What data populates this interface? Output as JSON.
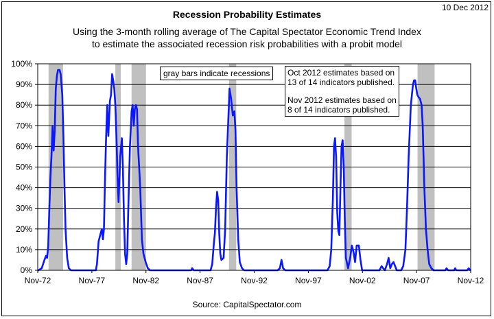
{
  "header": {
    "date": "10 Dec 2012",
    "title": "Recession Probability Estimates",
    "subtitle_line1": "Using the 3-month rolling average of The Capital Spectator Economic Trend Index",
    "subtitle_line2": "to estimate the associated recession risk probabilities with a probit model"
  },
  "annotations": {
    "recession_note": "gray bars indicate recessions",
    "estimate_note_1a": "Oct 2012 estimates based on",
    "estimate_note_1b": "13 of 14 indicators published.",
    "estimate_note_2a": "Nov 2012 estimates based on",
    "estimate_note_2b": "8 of 14 indicators published."
  },
  "footer": {
    "source": "Source: CapitalSpectator.com"
  },
  "colors": {
    "line": "#0a17ff",
    "recession_bar": "#c0c0c0",
    "grid": "#000000"
  },
  "chart_data": {
    "type": "line",
    "title": "Recession Probability Estimates",
    "xlabel": "",
    "ylabel": "",
    "x_ticks": [
      "Nov-72",
      "Nov-77",
      "Nov-82",
      "Nov-87",
      "Nov-92",
      "Nov-97",
      "Nov-02",
      "Nov-07",
      "Nov-12"
    ],
    "x_range": [
      1972.83,
      2012.83
    ],
    "y_ticks": [
      "0%",
      "10%",
      "20%",
      "30%",
      "40%",
      "50%",
      "60%",
      "70%",
      "80%",
      "90%",
      "100%"
    ],
    "ylim": [
      0,
      100
    ],
    "grid": "horizontal",
    "recessions": [
      {
        "start": 1973.83,
        "end": 1975.17
      },
      {
        "start": 1980.0,
        "end": 1980.5
      },
      {
        "start": 1981.5,
        "end": 1982.83
      },
      {
        "start": 1990.5,
        "end": 1991.17
      },
      {
        "start": 2001.17,
        "end": 2001.83
      },
      {
        "start": 2007.92,
        "end": 2009.5
      }
    ],
    "series": [
      {
        "values": [
          [
            1972.9,
            0
          ],
          [
            1973.2,
            1
          ],
          [
            1973.45,
            5
          ],
          [
            1973.6,
            7
          ],
          [
            1973.7,
            6
          ],
          [
            1973.8,
            12
          ],
          [
            1973.9,
            30
          ],
          [
            1974.0,
            45
          ],
          [
            1974.1,
            55
          ],
          [
            1974.2,
            70
          ],
          [
            1974.3,
            58
          ],
          [
            1974.4,
            68
          ],
          [
            1974.5,
            88
          ],
          [
            1974.6,
            94
          ],
          [
            1974.7,
            97
          ],
          [
            1974.85,
            97
          ],
          [
            1974.95,
            95
          ],
          [
            1975.1,
            85
          ],
          [
            1975.2,
            65
          ],
          [
            1975.3,
            40
          ],
          [
            1975.4,
            20
          ],
          [
            1975.55,
            6
          ],
          [
            1975.7,
            1
          ],
          [
            1975.9,
            0
          ],
          [
            1978.0,
            0
          ],
          [
            1978.2,
            0
          ],
          [
            1978.3,
            3
          ],
          [
            1978.45,
            14
          ],
          [
            1978.6,
            17
          ],
          [
            1978.75,
            20
          ],
          [
            1978.85,
            15
          ],
          [
            1978.95,
            20
          ],
          [
            1979.05,
            45
          ],
          [
            1979.15,
            65
          ],
          [
            1979.25,
            80
          ],
          [
            1979.35,
            65
          ],
          [
            1979.5,
            82
          ],
          [
            1979.6,
            85
          ],
          [
            1979.7,
            95
          ],
          [
            1979.8,
            92
          ],
          [
            1979.9,
            88
          ],
          [
            1980.0,
            80
          ],
          [
            1980.1,
            65
          ],
          [
            1980.2,
            45
          ],
          [
            1980.3,
            33
          ],
          [
            1980.45,
            55
          ],
          [
            1980.6,
            64
          ],
          [
            1980.7,
            50
          ],
          [
            1980.8,
            25
          ],
          [
            1980.9,
            8
          ],
          [
            1981.0,
            3
          ],
          [
            1981.1,
            8
          ],
          [
            1981.2,
            30
          ],
          [
            1981.35,
            60
          ],
          [
            1981.5,
            77
          ],
          [
            1981.6,
            80
          ],
          [
            1981.7,
            70
          ],
          [
            1981.8,
            78
          ],
          [
            1981.9,
            80
          ],
          [
            1982.0,
            78
          ],
          [
            1982.1,
            60
          ],
          [
            1982.3,
            40
          ],
          [
            1982.45,
            15
          ],
          [
            1982.6,
            8
          ],
          [
            1982.8,
            4
          ],
          [
            1983.0,
            1
          ],
          [
            1983.2,
            0
          ],
          [
            1987.0,
            0
          ],
          [
            1987.1,
            1
          ],
          [
            1987.25,
            0
          ],
          [
            1988.8,
            0
          ],
          [
            1988.95,
            3
          ],
          [
            1989.1,
            13
          ],
          [
            1989.2,
            18
          ],
          [
            1989.3,
            30
          ],
          [
            1989.4,
            38
          ],
          [
            1989.5,
            34
          ],
          [
            1989.6,
            18
          ],
          [
            1989.7,
            8
          ],
          [
            1989.8,
            5
          ],
          [
            1990.0,
            6
          ],
          [
            1990.15,
            20
          ],
          [
            1990.3,
            55
          ],
          [
            1990.45,
            75
          ],
          [
            1990.55,
            88
          ],
          [
            1990.7,
            83
          ],
          [
            1990.85,
            75
          ],
          [
            1991.0,
            77
          ],
          [
            1991.1,
            68
          ],
          [
            1991.2,
            40
          ],
          [
            1991.35,
            15
          ],
          [
            1991.5,
            4
          ],
          [
            1991.7,
            1
          ],
          [
            1991.9,
            0
          ],
          [
            1995.0,
            0
          ],
          [
            1995.2,
            1
          ],
          [
            1995.35,
            5
          ],
          [
            1995.5,
            1
          ],
          [
            1995.7,
            0
          ],
          [
            1999.6,
            0
          ],
          [
            1999.8,
            2
          ],
          [
            1999.95,
            10
          ],
          [
            2000.1,
            35
          ],
          [
            2000.2,
            60
          ],
          [
            2000.3,
            64
          ],
          [
            2000.4,
            55
          ],
          [
            2000.5,
            28
          ],
          [
            2000.6,
            19
          ],
          [
            2000.7,
            17
          ],
          [
            2000.8,
            40
          ],
          [
            2000.9,
            60
          ],
          [
            2001.0,
            63
          ],
          [
            2001.1,
            50
          ],
          [
            2001.2,
            25
          ],
          [
            2001.3,
            6
          ],
          [
            2001.5,
            1
          ],
          [
            2001.7,
            6
          ],
          [
            2001.85,
            12
          ],
          [
            2002.0,
            9
          ],
          [
            2002.15,
            4
          ],
          [
            2002.3,
            12
          ],
          [
            2002.5,
            12
          ],
          [
            2002.65,
            5
          ],
          [
            2002.8,
            0
          ],
          [
            2004.4,
            0
          ],
          [
            2004.6,
            2
          ],
          [
            2004.75,
            1
          ],
          [
            2004.9,
            0
          ],
          [
            2005.1,
            3
          ],
          [
            2005.25,
            6
          ],
          [
            2005.4,
            1
          ],
          [
            2005.55,
            3
          ],
          [
            2005.7,
            4
          ],
          [
            2005.85,
            2
          ],
          [
            2006.0,
            0
          ],
          [
            2006.4,
            0
          ],
          [
            2006.6,
            2
          ],
          [
            2006.8,
            10
          ],
          [
            2006.95,
            30
          ],
          [
            2007.1,
            55
          ],
          [
            2007.3,
            80
          ],
          [
            2007.5,
            90
          ],
          [
            2007.6,
            92
          ],
          [
            2007.7,
            92
          ],
          [
            2007.8,
            88
          ],
          [
            2007.9,
            85
          ],
          [
            2008.0,
            84
          ],
          [
            2008.15,
            83
          ],
          [
            2008.3,
            80
          ],
          [
            2008.4,
            70
          ],
          [
            2008.55,
            40
          ],
          [
            2008.7,
            20
          ],
          [
            2008.85,
            10
          ],
          [
            2009.0,
            3
          ],
          [
            2009.2,
            1
          ],
          [
            2009.4,
            0
          ],
          [
            2010.5,
            0
          ],
          [
            2010.6,
            1
          ],
          [
            2010.75,
            0
          ],
          [
            2011.3,
            0
          ],
          [
            2011.4,
            1
          ],
          [
            2011.5,
            0
          ],
          [
            2012.5,
            0
          ],
          [
            2012.65,
            1
          ],
          [
            2012.8,
            0
          ]
        ]
      }
    ]
  }
}
